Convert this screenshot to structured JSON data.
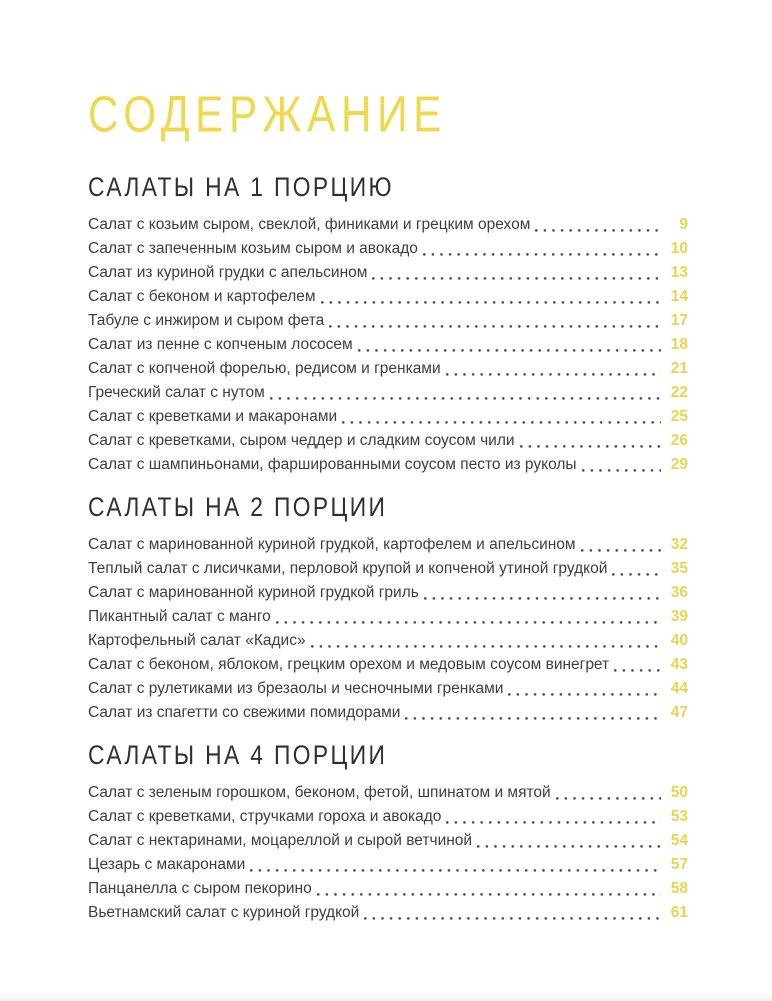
{
  "page": {
    "title": "СОДЕРЖАНИЕ",
    "accent_color": "#eed94e",
    "page_number_color": "#e9d44f",
    "text_color": "#3e3e3e",
    "heading_color": "#2f2f2f"
  },
  "sections": [
    {
      "heading": "САЛАТЫ НА 1 ПОРЦИЮ",
      "entries": [
        {
          "title": "Салат с козьим сыром, свеклой, финиками и грецким орехом",
          "page": "9"
        },
        {
          "title": "Салат с запеченным козьим сыром и авокадо",
          "page": "10"
        },
        {
          "title": "Салат из куриной грудки с апельсином",
          "page": "13"
        },
        {
          "title": "Салат с беконом и картофелем",
          "page": "14"
        },
        {
          "title": "Табуле с инжиром и сыром фета",
          "page": "17"
        },
        {
          "title": "Салат из пенне с копченым лососем",
          "page": "18"
        },
        {
          "title": "Салат с копченой форелью, редисом и гренками",
          "page": "21"
        },
        {
          "title": "Греческий салат с нутом",
          "page": "22"
        },
        {
          "title": "Салат с креветками и макаронами",
          "page": "25"
        },
        {
          "title": "Салат с креветками, сыром чеддер и сладким соусом чили",
          "page": "26"
        },
        {
          "title": "Салат с шампиньонами, фаршированными соусом песто из руколы",
          "page": "29"
        }
      ]
    },
    {
      "heading": "САЛАТЫ НА 2 ПОРЦИИ",
      "entries": [
        {
          "title": "Салат с маринованной куриной грудкой, картофелем и апельсином",
          "page": "32"
        },
        {
          "title": "Теплый салат с лисичками, перловой крупой и копченой утиной грудкой",
          "page": "35"
        },
        {
          "title": "Салат с маринованной куриной грудкой гриль",
          "page": "36"
        },
        {
          "title": "Пикантный салат с манго",
          "page": "39"
        },
        {
          "title": "Картофельный салат «Кадис»",
          "page": "40"
        },
        {
          "title": "Салат с беконом, яблоком, грецким орехом и медовым соусом винегрет",
          "page": "43"
        },
        {
          "title": "Салат с рулетиками из брезаолы и чесночными гренками",
          "page": "44"
        },
        {
          "title": "Салат из спагетти со свежими помидорами",
          "page": "47"
        }
      ]
    },
    {
      "heading": "САЛАТЫ НА 4 ПОРЦИИ",
      "entries": [
        {
          "title": "Салат с зеленым горошком, беконом, фетой, шпинатом и мятой",
          "page": "50"
        },
        {
          "title": "Салат с креветками, стручками гороха и авокадо",
          "page": "53"
        },
        {
          "title": "Салат с нектаринами, моцареллой и сырой ветчиной",
          "page": "54"
        },
        {
          "title": "Цезарь с макаронами",
          "page": "57"
        },
        {
          "title": "Панцанелла с сыром пекорино",
          "page": "58"
        },
        {
          "title": "Вьетнамский салат с куриной грудкой",
          "page": "61"
        }
      ]
    }
  ]
}
